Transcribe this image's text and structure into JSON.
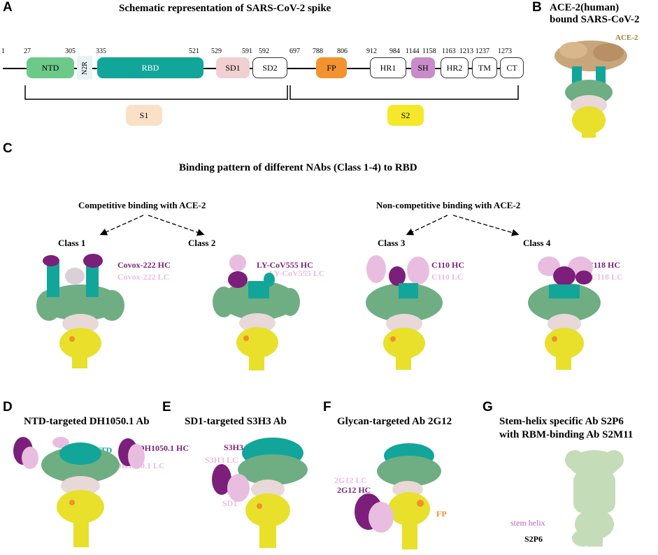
{
  "panelA": {
    "letter": "A",
    "title": "Schematic representation of SARS-CoV-2 spike",
    "positions": [
      "1",
      "27",
      "305",
      "335",
      "521",
      "529",
      "591",
      "592",
      "697",
      "788",
      "806",
      "912",
      "984",
      "1144",
      "1158",
      "1163",
      "1213",
      "1237",
      "1273"
    ],
    "domains": {
      "ntd": "NTD",
      "n2r": "N2R",
      "rbd": "RBD",
      "sd1": "SD1",
      "sd2": "SD2",
      "fp": "FP",
      "hr1": "HR1",
      "sh": "SH",
      "hr2": "HR2",
      "tm": "TM",
      "ct": "CT"
    },
    "subunits": {
      "s1": "S1",
      "s2": "S2"
    },
    "colors": {
      "ntd": "#6cc98a",
      "rbd": "#12a59a",
      "sd1": "#f0d0d0",
      "fp": "#f39330",
      "sh": "#c98bc9",
      "s1": "#fbe0c8",
      "s2": "#f5e82a"
    }
  },
  "panelB": {
    "letter": "B",
    "title_line1": "ACE-2(human)",
    "title_line2": "bound SARS-CoV-2",
    "ace2_label": "ACE-2"
  },
  "panelC": {
    "letter": "C",
    "title": "Binding pattern of different NAbs (Class 1-4) to RBD",
    "competitive": "Competitive binding with ACE-2",
    "noncompetitive": "Non-competitive binding with ACE-2",
    "classes": [
      {
        "name": "Class 1",
        "hc": "Covox-222 HC",
        "lc": "Covox-222 LC"
      },
      {
        "name": "Class 2",
        "hc": "LY-CoV555 HC",
        "lc": "LY-CoV555 LC"
      },
      {
        "name": "Class 3",
        "hc": "C110 HC",
        "lc": "C110 LC"
      },
      {
        "name": "Class 4",
        "hc": "C118 HC",
        "lc": "C118 LC"
      }
    ]
  },
  "panelD": {
    "letter": "D",
    "title": "NTD-targeted DH1050.1 Ab",
    "ntd": "NTD",
    "hc": "DH1050.1 HC",
    "lc": "DH1050.1 LC"
  },
  "panelE": {
    "letter": "E",
    "title": "SD1-targeted S3H3 Ab",
    "hc": "S3H3 HC",
    "lc": "S3H3 LC",
    "sd1": "SD1"
  },
  "panelF": {
    "letter": "F",
    "title": "Glycan-targeted Ab 2G12",
    "lc": "2G12 LC",
    "hc": "2G12 HC",
    "fp": "FP"
  },
  "panelG": {
    "letter": "G",
    "title_line1": "Stem-helix specific Ab S2P6",
    "title_line2": "with RBM-binding Ab S2M11",
    "stem": "stem helix",
    "s2p6": "S2P6"
  },
  "colors": {
    "hc": "#7b1f7b",
    "lc": "#e8bde0",
    "rbd": "#12a59a",
    "ntd": "#6fae82",
    "yellow": "#e8e02a",
    "orange": "#f0902a",
    "ace2": "#c8a57a",
    "g_map": "#c5dcb8",
    "ace2_label": "#a0802a",
    "fp_label": "#f0902a",
    "ntd_label": "#12a59a",
    "stem_label": "#c060c0"
  }
}
